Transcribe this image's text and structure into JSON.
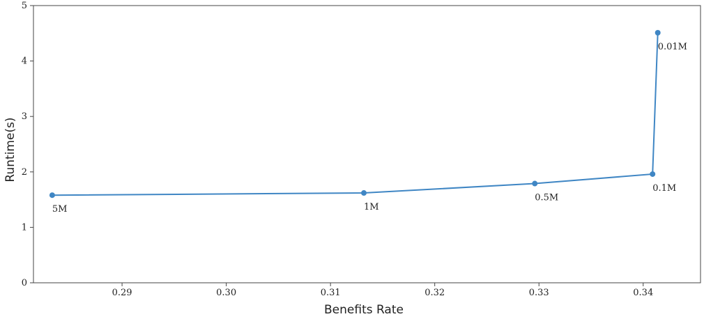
{
  "chart_data": {
    "type": "line",
    "title": "",
    "xlabel": "Benefits Rate",
    "ylabel": "Runtime(s)",
    "xlim": [
      0.2815,
      0.3455
    ],
    "ylim": [
      0,
      5
    ],
    "xticks": [
      "0.29",
      "0.30",
      "0.31",
      "0.32",
      "0.33",
      "0.34"
    ],
    "yticks": [
      "0",
      "1",
      "2",
      "3",
      "4",
      "5"
    ],
    "grid": false,
    "color": "#3f86c4",
    "series": [
      {
        "x": [
          0.2833,
          0.3132,
          0.3296,
          0.3409,
          0.3414
        ],
        "y": [
          1.58,
          1.62,
          1.79,
          1.96,
          4.51
        ],
        "labels": [
          "5M",
          "1M",
          "0.5M",
          "0.1M",
          "0.01M"
        ]
      }
    ]
  }
}
